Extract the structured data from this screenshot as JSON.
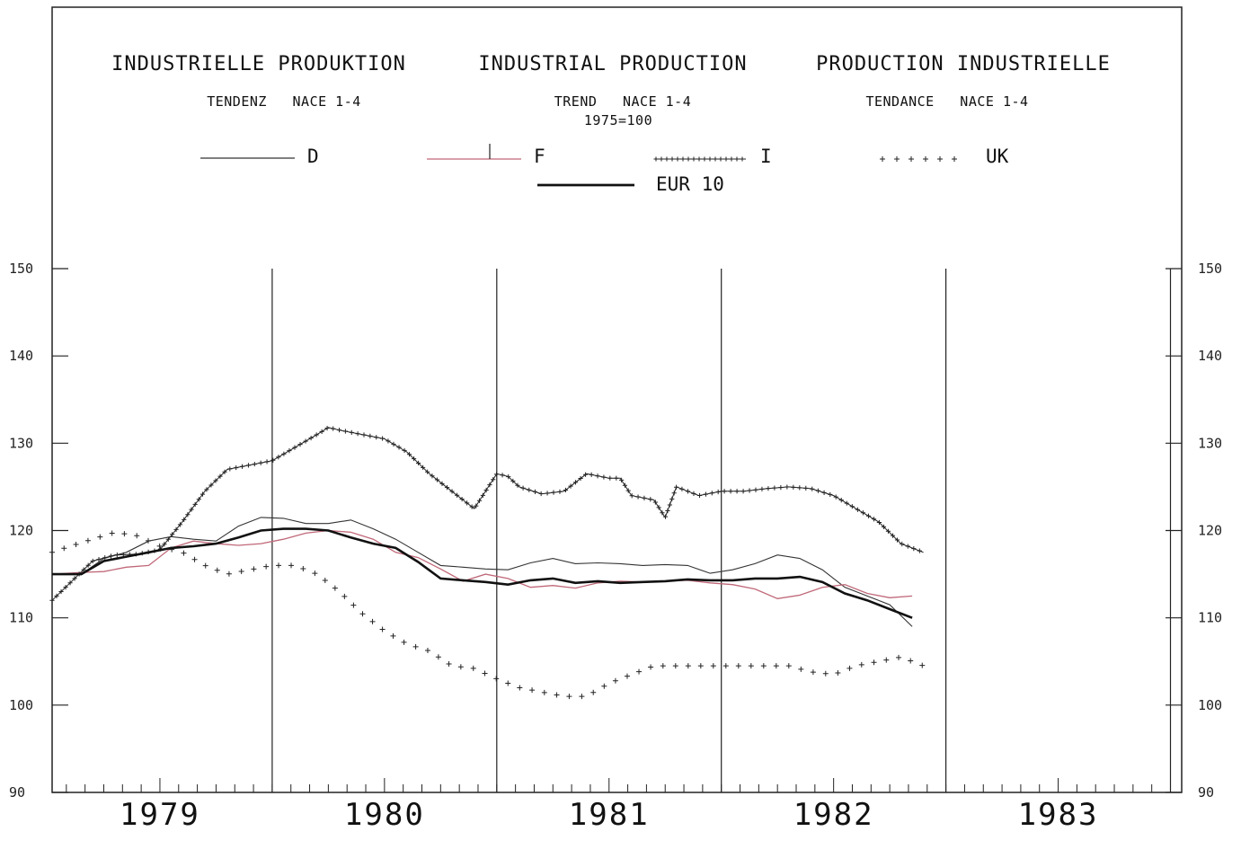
{
  "chart_data": {
    "type": "line",
    "titles": [
      {
        "title": "INDUSTRIELLE PRODUKTION",
        "subtitle": "TENDENZ   NACE 1-4",
        "subtitle2": ""
      },
      {
        "title": "INDUSTRIAL PRODUCTION",
        "subtitle": "TREND   NACE 1-4",
        "subtitle2": "1975=100"
      },
      {
        "title": "PRODUCTION INDUSTRIELLE",
        "subtitle": "TENDANCE   NACE 1-4",
        "subtitle2": ""
      }
    ],
    "ylim": [
      90,
      150
    ],
    "y_ticks": [
      "90",
      "100",
      "110",
      "120",
      "130",
      "140",
      "150"
    ],
    "xlim": [
      1978.52,
      1983.55
    ],
    "x_year_labels": [
      "1979",
      "1980",
      "1981",
      "1982",
      "1983"
    ],
    "colors": {
      "D": "#333333",
      "F": "#c06878",
      "I": "#222222",
      "UK": "#222222",
      "EUR 10": "#111111"
    },
    "series": [
      {
        "name": "D",
        "style": "thin",
        "x": [
          1978.52,
          1978.65,
          1978.75,
          1978.85,
          1978.95,
          1979.05,
          1979.15,
          1979.25,
          1979.35,
          1979.45,
          1979.55,
          1979.65,
          1979.75,
          1979.85,
          1979.95,
          1980.05,
          1980.15,
          1980.25,
          1980.35,
          1980.45,
          1980.55,
          1980.65,
          1980.75,
          1980.85,
          1980.95,
          1981.05,
          1981.15,
          1981.25,
          1981.35,
          1981.45,
          1981.55,
          1981.65,
          1981.75,
          1981.85,
          1981.95,
          1982.05,
          1982.15,
          1982.25,
          1982.35
        ],
        "values": [
          115,
          115,
          116.8,
          117.5,
          118.8,
          119.3,
          119,
          118.8,
          120.5,
          121.5,
          121.4,
          120.8,
          120.8,
          121.2,
          120.2,
          119,
          117.5,
          116,
          115.8,
          115.6,
          115.5,
          116.3,
          116.8,
          116.2,
          116.3,
          116.2,
          116,
          116.1,
          116,
          115.1,
          115.5,
          116.2,
          117.2,
          116.8,
          115.5,
          113.5,
          112.5,
          111.5,
          109
        ]
      },
      {
        "name": "F",
        "style": "pink",
        "x": [
          1978.52,
          1978.65,
          1978.75,
          1978.85,
          1978.95,
          1979.05,
          1979.15,
          1979.25,
          1979.35,
          1979.45,
          1979.55,
          1979.65,
          1979.75,
          1979.85,
          1979.95,
          1980.05,
          1980.15,
          1980.25,
          1980.35,
          1980.45,
          1980.55,
          1980.65,
          1980.75,
          1980.85,
          1980.95,
          1981.05,
          1981.15,
          1981.25,
          1981.35,
          1981.45,
          1981.55,
          1981.65,
          1981.75,
          1981.85,
          1981.95,
          1982.05,
          1982.15,
          1982.25,
          1982.35
        ],
        "values": [
          115,
          115.2,
          115.3,
          115.8,
          116,
          118,
          118.8,
          118.5,
          118.3,
          118.5,
          119,
          119.7,
          120,
          119.8,
          119,
          117.5,
          116.9,
          115.6,
          114.2,
          115,
          114.5,
          113.5,
          113.7,
          113.4,
          114,
          114.2,
          114.1,
          114.2,
          114.3,
          114,
          113.8,
          113.3,
          112.2,
          112.6,
          113.5,
          113.8,
          112.8,
          112.3,
          112.5
        ]
      },
      {
        "name": "I",
        "style": "plus-dense",
        "x": [
          1978.52,
          1978.6,
          1978.7,
          1978.8,
          1978.9,
          1979.0,
          1979.1,
          1979.2,
          1979.3,
          1979.4,
          1979.5,
          1979.6,
          1979.7,
          1979.75,
          1979.8,
          1979.9,
          1980.0,
          1980.1,
          1980.2,
          1980.3,
          1980.4,
          1980.5,
          1980.55,
          1980.6,
          1980.7,
          1980.8,
          1980.9,
          1981.0,
          1981.05,
          1981.1,
          1981.2,
          1981.25,
          1981.3,
          1981.4,
          1981.5,
          1981.6,
          1981.7,
          1981.8,
          1981.9,
          1982.0,
          1982.1,
          1982.2,
          1982.3,
          1982.4
        ],
        "values": [
          112,
          114,
          116.5,
          117.2,
          117.3,
          117.8,
          121,
          124.5,
          127,
          127.5,
          128,
          129.5,
          131,
          131.8,
          131.5,
          131,
          130.5,
          129,
          126.5,
          124.5,
          122.5,
          126.5,
          126.2,
          125,
          124.2,
          124.5,
          126.5,
          126,
          126,
          124,
          123.5,
          121.5,
          125,
          124,
          124.5,
          124.5,
          124.8,
          125,
          124.8,
          124,
          122.5,
          121,
          118.5,
          117.5
        ]
      },
      {
        "name": "UK",
        "style": "plus-sparse",
        "x": [
          1978.52,
          1978.6,
          1978.7,
          1978.8,
          1978.9,
          1979.0,
          1979.1,
          1979.2,
          1979.3,
          1979.4,
          1979.5,
          1979.6,
          1979.7,
          1979.8,
          1979.9,
          1980.0,
          1980.1,
          1980.2,
          1980.3,
          1980.4,
          1980.5,
          1980.6,
          1980.7,
          1980.8,
          1980.9,
          1981.0,
          1981.1,
          1981.2,
          1981.3,
          1981.4,
          1981.5,
          1981.6,
          1981.7,
          1981.8,
          1981.9,
          1982.0,
          1982.1,
          1982.2,
          1982.3,
          1982.4
        ],
        "values": [
          117.5,
          118.2,
          119,
          119.8,
          119.4,
          118.2,
          117.5,
          116,
          115,
          115.5,
          116,
          116,
          115,
          113,
          110.5,
          108.5,
          107,
          106.2,
          104.5,
          104.2,
          103,
          102,
          101.5,
          101,
          101,
          102.5,
          103.5,
          104.5,
          104.5,
          104.5,
          104.5,
          104.5,
          104.5,
          104.5,
          103.8,
          103.5,
          104.5,
          105,
          105.5,
          104.5
        ]
      },
      {
        "name": "EUR 10",
        "style": "bold",
        "x": [
          1978.52,
          1978.65,
          1978.75,
          1978.85,
          1978.95,
          1979.05,
          1979.15,
          1979.25,
          1979.35,
          1979.45,
          1979.55,
          1979.65,
          1979.75,
          1979.85,
          1979.95,
          1980.05,
          1980.15,
          1980.25,
          1980.35,
          1980.45,
          1980.55,
          1980.65,
          1980.75,
          1980.85,
          1980.95,
          1981.05,
          1981.15,
          1981.25,
          1981.35,
          1981.45,
          1981.55,
          1981.65,
          1981.75,
          1981.85,
          1981.95,
          1982.05,
          1982.15,
          1982.25,
          1982.35
        ],
        "values": [
          115,
          115,
          116.5,
          117,
          117.5,
          118,
          118.2,
          118.5,
          119.2,
          120,
          120.2,
          120.2,
          120,
          119.2,
          118.5,
          118,
          116.4,
          114.5,
          114.3,
          114.1,
          113.8,
          114.3,
          114.5,
          114,
          114.2,
          114,
          114.1,
          114.2,
          114.4,
          114.3,
          114.3,
          114.5,
          114.5,
          114.7,
          114.1,
          112.8,
          112,
          111,
          110
        ]
      }
    ],
    "legend": {
      "placement": "top",
      "entries": [
        "D",
        "F",
        "I",
        "UK",
        "EUR 10"
      ]
    }
  }
}
